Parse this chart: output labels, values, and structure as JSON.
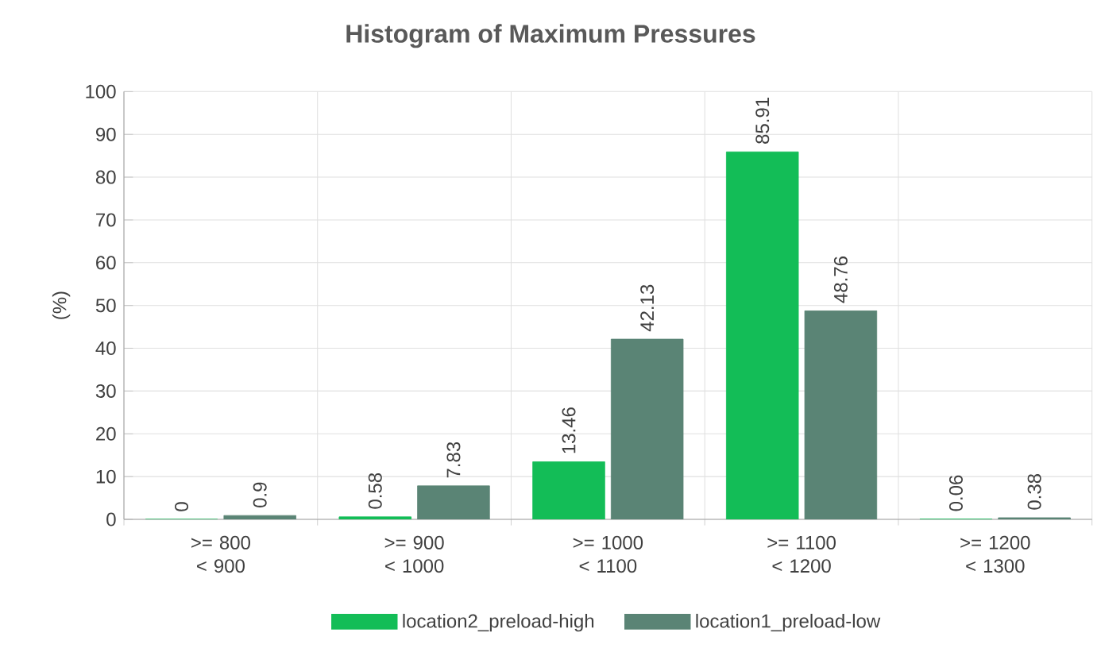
{
  "chart_data": {
    "type": "bar",
    "title": "Histogram of Maximum Pressures",
    "ylabel": "(%)",
    "categories": [
      ">= 800 < 900",
      ">= 900 < 1000",
      ">= 1000 < 1100",
      ">= 1100 < 1200",
      ">= 1200 < 1300"
    ],
    "series": [
      {
        "name": "location2_preload-high",
        "color": "#13bd57",
        "values": [
          0,
          0.58,
          13.46,
          85.91,
          0.06
        ]
      },
      {
        "name": "location1_preload-low",
        "color": "#5a8475",
        "values": [
          0.9,
          7.83,
          42.13,
          48.76,
          0.38
        ]
      }
    ],
    "ylim": [
      0,
      100
    ],
    "yticks": [
      0,
      10,
      20,
      30,
      40,
      50,
      60,
      70,
      80,
      90,
      100
    ],
    "grid": true,
    "legend": "bottom",
    "data_labels": true
  }
}
